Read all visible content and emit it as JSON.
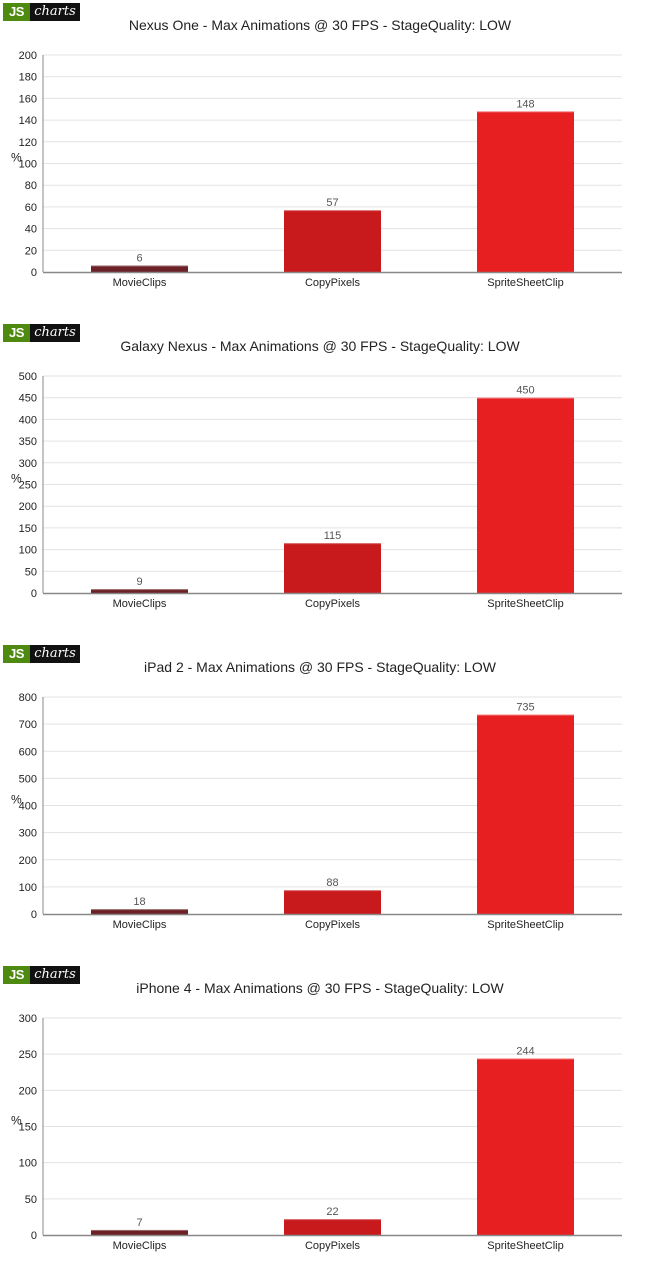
{
  "logo": {
    "js": "JS",
    "charts": "charts"
  },
  "colors": {
    "bars": [
      "#6b2126",
      "#c81a1c",
      "#e81f21"
    ],
    "grid": "#e3e3e3",
    "axis": "#888888",
    "text": "#222222",
    "label": "#555555"
  },
  "chart_data": [
    {
      "type": "bar",
      "title": "Nexus One - Max Animations @ 30 FPS - StageQuality: LOW",
      "ylabel": "%",
      "categories": [
        "MovieClips",
        "CopyPixels",
        "SpriteSheetClip"
      ],
      "values": [
        6,
        57,
        148
      ],
      "ylim": [
        0,
        200
      ],
      "yticks": [
        0,
        20,
        40,
        60,
        80,
        100,
        120,
        140,
        160,
        180,
        200
      ],
      "grid": true
    },
    {
      "type": "bar",
      "title": "Galaxy Nexus - Max Animations @ 30 FPS - StageQuality: LOW",
      "ylabel": "%",
      "categories": [
        "MovieClips",
        "CopyPixels",
        "SpriteSheetClip"
      ],
      "values": [
        9,
        115,
        450
      ],
      "ylim": [
        0,
        500
      ],
      "yticks": [
        0,
        50,
        100,
        150,
        200,
        250,
        300,
        350,
        400,
        450,
        500
      ],
      "grid": true
    },
    {
      "type": "bar",
      "title": "iPad 2 - Max Animations @ 30 FPS - StageQuality: LOW",
      "ylabel": "%",
      "categories": [
        "MovieClips",
        "CopyPixels",
        "SpriteSheetClip"
      ],
      "values": [
        18,
        88,
        735
      ],
      "ylim": [
        0,
        800
      ],
      "yticks": [
        0,
        100,
        200,
        300,
        400,
        500,
        600,
        700,
        800
      ],
      "grid": true
    },
    {
      "type": "bar",
      "title": "iPhone 4 - Max Animations @ 30 FPS - StageQuality: LOW",
      "ylabel": "%",
      "categories": [
        "MovieClips",
        "CopyPixels",
        "SpriteSheetClip"
      ],
      "values": [
        7,
        22,
        244
      ],
      "ylim": [
        0,
        300
      ],
      "yticks": [
        0,
        50,
        100,
        150,
        200,
        250,
        300
      ],
      "grid": true
    }
  ]
}
